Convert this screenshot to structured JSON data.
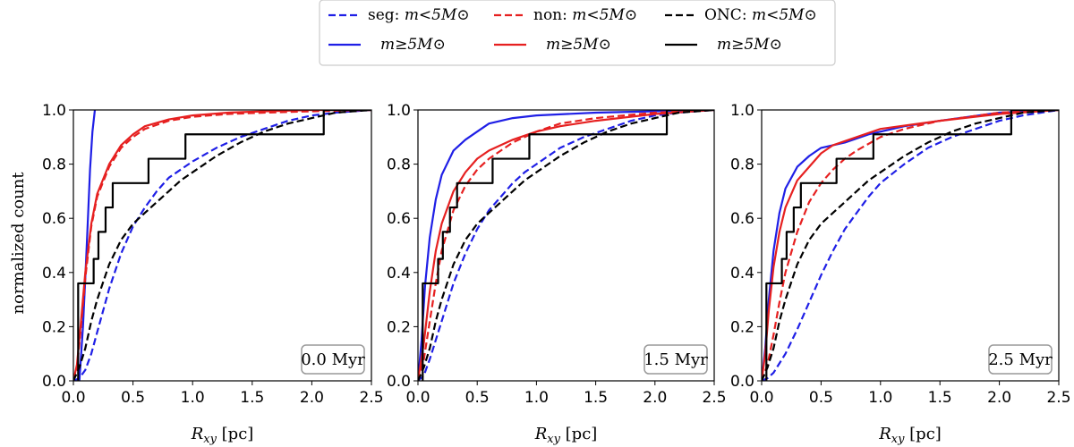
{
  "chart_data": {
    "type": "line",
    "xlabel_var": "R",
    "xlabel_sub": "xy",
    "xlabel_unit": "[pc]",
    "ylabel": "normalized count",
    "xlim": [
      0,
      2.5
    ],
    "ylim": [
      0,
      1.0
    ],
    "xticks": [
      "0.0",
      "0.5",
      "1.0",
      "1.5",
      "2.0",
      "2.5"
    ],
    "yticks": [
      "0.0",
      "0.2",
      "0.4",
      "0.6",
      "0.8",
      "1.0"
    ],
    "legend": [
      {
        "name": "seg",
        "prefix": "seg: ",
        "mass": "m<5M⊙",
        "color": "#1f1fe6",
        "dash": true
      },
      {
        "name": "non",
        "prefix": "non: ",
        "mass": "m<5M⊙",
        "color": "#e62020",
        "dash": true
      },
      {
        "name": "onc",
        "prefix": "ONC: ",
        "mass": "m<5M⊙",
        "color": "#000000",
        "dash": true
      },
      {
        "name": "seg-hi",
        "prefix": "",
        "mass": "m≥5M⊙",
        "color": "#1f1fe6",
        "dash": false
      },
      {
        "name": "non-hi",
        "prefix": "",
        "mass": "m≥5M⊙",
        "color": "#e62020",
        "dash": false
      },
      {
        "name": "onc-hi",
        "prefix": "",
        "mass": "m≥5M⊙",
        "color": "#000000",
        "dash": false
      }
    ],
    "panels": [
      {
        "time": "0.0 Myr",
        "series": [
          {
            "name": "seg m<5",
            "color": "#1f1fe6",
            "dash": true,
            "x": [
              0,
              0.05,
              0.1,
              0.15,
              0.2,
              0.3,
              0.4,
              0.5,
              0.6,
              0.7,
              0.8,
              0.9,
              1.0,
              1.2,
              1.4,
              1.6,
              1.8,
              2.0,
              2.2,
              2.5
            ],
            "y": [
              0,
              0.01,
              0.04,
              0.1,
              0.18,
              0.34,
              0.47,
              0.57,
              0.64,
              0.7,
              0.75,
              0.78,
              0.81,
              0.86,
              0.9,
              0.93,
              0.96,
              0.98,
              0.99,
              1.0
            ]
          },
          {
            "name": "seg m>=5",
            "color": "#1f1fe6",
            "dash": false,
            "x": [
              0.05,
              0.08,
              0.1,
              0.12,
              0.14,
              0.16,
              0.18
            ],
            "y": [
              0.0,
              0.2,
              0.38,
              0.58,
              0.78,
              0.92,
              1.0
            ]
          },
          {
            "name": "non m<5",
            "color": "#e62020",
            "dash": true,
            "x": [
              0,
              0.03,
              0.06,
              0.1,
              0.15,
              0.2,
              0.3,
              0.4,
              0.5,
              0.6,
              0.8,
              1.0,
              1.3,
              1.6,
              2.0,
              2.5
            ],
            "y": [
              0,
              0.05,
              0.18,
              0.38,
              0.57,
              0.68,
              0.79,
              0.86,
              0.9,
              0.93,
              0.96,
              0.975,
              0.985,
              0.99,
              0.995,
              1.0
            ]
          },
          {
            "name": "non m>=5",
            "color": "#e62020",
            "dash": false,
            "x": [
              0,
              0.03,
              0.06,
              0.1,
              0.15,
              0.2,
              0.3,
              0.4,
              0.5,
              0.6,
              0.8,
              1.0,
              1.3,
              1.6,
              2.0,
              2.5
            ],
            "y": [
              0,
              0.06,
              0.2,
              0.4,
              0.58,
              0.69,
              0.8,
              0.87,
              0.91,
              0.94,
              0.965,
              0.98,
              0.99,
              0.995,
              1.0,
              1.0
            ]
          },
          {
            "name": "onc m<5",
            "color": "#000000",
            "dash": true,
            "x": [
              0,
              0.05,
              0.1,
              0.15,
              0.2,
              0.3,
              0.4,
              0.5,
              0.6,
              0.7,
              0.8,
              0.9,
              1.0,
              1.2,
              1.4,
              1.6,
              1.8,
              2.0,
              2.2,
              2.5
            ],
            "y": [
              0,
              0.05,
              0.12,
              0.22,
              0.3,
              0.43,
              0.52,
              0.58,
              0.62,
              0.66,
              0.7,
              0.74,
              0.77,
              0.83,
              0.88,
              0.92,
              0.95,
              0.97,
              0.99,
              1.0
            ]
          },
          {
            "name": "onc m>=5",
            "color": "#000000",
            "dash": false,
            "step": true,
            "x": [
              0.04,
              0.08,
              0.17,
              0.21,
              0.27,
              0.33,
              0.46,
              0.63,
              0.94,
              2.1,
              2.5
            ],
            "y": [
              0.36,
              0.36,
              0.45,
              0.55,
              0.64,
              0.73,
              0.73,
              0.82,
              0.91,
              1.0,
              1.0
            ]
          }
        ]
      },
      {
        "time": "1.5 Myr",
        "series": [
          {
            "name": "seg m<5",
            "color": "#1f1fe6",
            "dash": true,
            "x": [
              0,
              0.05,
              0.1,
              0.2,
              0.3,
              0.4,
              0.5,
              0.6,
              0.7,
              0.8,
              0.9,
              1.0,
              1.2,
              1.4,
              1.6,
              1.8,
              2.0,
              2.2,
              2.5
            ],
            "y": [
              0,
              0.02,
              0.08,
              0.22,
              0.36,
              0.47,
              0.56,
              0.63,
              0.68,
              0.73,
              0.77,
              0.8,
              0.86,
              0.9,
              0.93,
              0.96,
              0.98,
              0.99,
              1.0
            ]
          },
          {
            "name": "seg m>=5",
            "color": "#1f1fe6",
            "dash": false,
            "x": [
              0,
              0.03,
              0.06,
              0.1,
              0.15,
              0.2,
              0.3,
              0.4,
              0.5,
              0.6,
              0.8,
              1.0,
              1.5,
              2.0,
              2.5
            ],
            "y": [
              0,
              0.15,
              0.35,
              0.53,
              0.67,
              0.76,
              0.85,
              0.89,
              0.92,
              0.95,
              0.97,
              0.98,
              0.99,
              0.995,
              1.0
            ]
          },
          {
            "name": "non m<5",
            "color": "#e62020",
            "dash": true,
            "x": [
              0,
              0.05,
              0.1,
              0.15,
              0.2,
              0.3,
              0.4,
              0.5,
              0.6,
              0.7,
              0.8,
              1.0,
              1.2,
              1.5,
              2.0,
              2.5
            ],
            "y": [
              0,
              0.08,
              0.22,
              0.36,
              0.48,
              0.63,
              0.72,
              0.78,
              0.82,
              0.85,
              0.88,
              0.92,
              0.95,
              0.97,
              0.99,
              1.0
            ]
          },
          {
            "name": "non m>=5",
            "color": "#e62020",
            "dash": false,
            "x": [
              0,
              0.05,
              0.1,
              0.15,
              0.2,
              0.3,
              0.4,
              0.5,
              0.6,
              0.8,
              1.0,
              1.2,
              1.5,
              2.0,
              2.5
            ],
            "y": [
              0,
              0.14,
              0.33,
              0.48,
              0.58,
              0.7,
              0.77,
              0.82,
              0.85,
              0.89,
              0.92,
              0.94,
              0.96,
              0.985,
              1.0
            ]
          },
          {
            "name": "onc m<5",
            "color": "#000000",
            "dash": true,
            "x": [
              0,
              0.05,
              0.1,
              0.15,
              0.2,
              0.3,
              0.4,
              0.5,
              0.6,
              0.7,
              0.8,
              0.9,
              1.0,
              1.2,
              1.4,
              1.6,
              1.8,
              2.0,
              2.2,
              2.5
            ],
            "y": [
              0,
              0.05,
              0.12,
              0.22,
              0.3,
              0.43,
              0.52,
              0.58,
              0.62,
              0.66,
              0.7,
              0.74,
              0.77,
              0.83,
              0.88,
              0.92,
              0.95,
              0.97,
              0.99,
              1.0
            ]
          },
          {
            "name": "onc m>=5",
            "color": "#000000",
            "dash": false,
            "step": true,
            "x": [
              0.04,
              0.08,
              0.17,
              0.21,
              0.27,
              0.33,
              0.46,
              0.63,
              0.94,
              2.1,
              2.5
            ],
            "y": [
              0.36,
              0.36,
              0.45,
              0.55,
              0.64,
              0.73,
              0.73,
              0.82,
              0.91,
              1.0,
              1.0
            ]
          }
        ]
      },
      {
        "time": "2.5 Myr",
        "series": [
          {
            "name": "seg m<5",
            "color": "#1f1fe6",
            "dash": true,
            "x": [
              0,
              0.05,
              0.1,
              0.2,
              0.3,
              0.4,
              0.5,
              0.6,
              0.7,
              0.8,
              0.9,
              1.0,
              1.2,
              1.4,
              1.6,
              1.8,
              2.0,
              2.2,
              2.5
            ],
            "y": [
              0,
              0.01,
              0.03,
              0.1,
              0.19,
              0.29,
              0.39,
              0.48,
              0.56,
              0.62,
              0.68,
              0.73,
              0.8,
              0.86,
              0.9,
              0.93,
              0.96,
              0.98,
              1.0
            ]
          },
          {
            "name": "seg m>=5",
            "color": "#1f1fe6",
            "dash": false,
            "x": [
              0,
              0.03,
              0.06,
              0.1,
              0.15,
              0.2,
              0.3,
              0.4,
              0.5,
              0.6,
              0.7,
              0.9,
              1.2,
              1.5,
              2.0,
              2.5
            ],
            "y": [
              0,
              0.12,
              0.3,
              0.48,
              0.62,
              0.71,
              0.79,
              0.83,
              0.86,
              0.87,
              0.88,
              0.91,
              0.94,
              0.96,
              0.99,
              1.0
            ]
          },
          {
            "name": "non m<5",
            "color": "#e62020",
            "dash": true,
            "x": [
              0,
              0.05,
              0.1,
              0.15,
              0.2,
              0.3,
              0.4,
              0.5,
              0.6,
              0.7,
              0.8,
              1.0,
              1.2,
              1.5,
              2.0,
              2.5
            ],
            "y": [
              0,
              0.06,
              0.17,
              0.29,
              0.4,
              0.55,
              0.66,
              0.73,
              0.78,
              0.82,
              0.85,
              0.9,
              0.93,
              0.96,
              0.99,
              1.0
            ]
          },
          {
            "name": "non m>=5",
            "color": "#e62020",
            "dash": false,
            "x": [
              0,
              0.03,
              0.06,
              0.1,
              0.15,
              0.2,
              0.3,
              0.4,
              0.5,
              0.6,
              0.8,
              1.0,
              1.5,
              2.0,
              2.5
            ],
            "y": [
              0,
              0.1,
              0.26,
              0.42,
              0.55,
              0.64,
              0.74,
              0.79,
              0.84,
              0.87,
              0.9,
              0.93,
              0.96,
              0.985,
              1.0
            ]
          },
          {
            "name": "onc m<5",
            "color": "#000000",
            "dash": true,
            "x": [
              0,
              0.05,
              0.1,
              0.15,
              0.2,
              0.3,
              0.4,
              0.5,
              0.6,
              0.7,
              0.8,
              0.9,
              1.0,
              1.2,
              1.4,
              1.6,
              1.8,
              2.0,
              2.2,
              2.5
            ],
            "y": [
              0,
              0.05,
              0.12,
              0.22,
              0.3,
              0.43,
              0.52,
              0.58,
              0.62,
              0.66,
              0.7,
              0.74,
              0.77,
              0.83,
              0.88,
              0.92,
              0.95,
              0.97,
              0.99,
              1.0
            ]
          },
          {
            "name": "onc m>=5",
            "color": "#000000",
            "dash": false,
            "step": true,
            "x": [
              0.04,
              0.08,
              0.17,
              0.21,
              0.27,
              0.33,
              0.46,
              0.63,
              0.94,
              2.1,
              2.5
            ],
            "y": [
              0.36,
              0.36,
              0.45,
              0.55,
              0.64,
              0.73,
              0.73,
              0.82,
              0.91,
              1.0,
              1.0
            ]
          }
        ]
      }
    ]
  }
}
